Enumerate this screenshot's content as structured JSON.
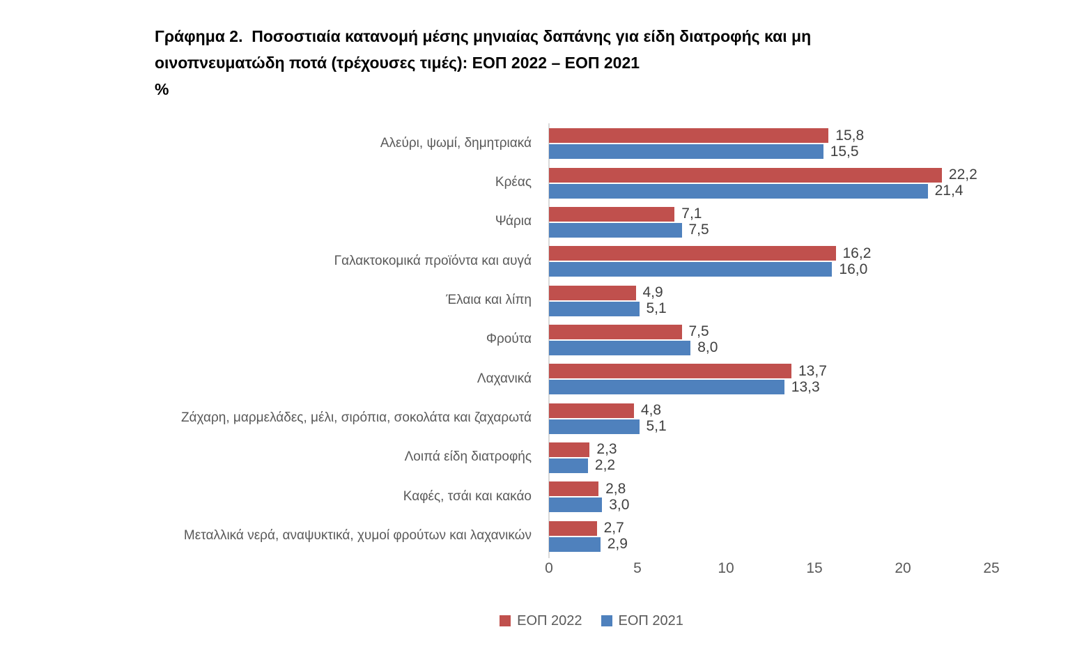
{
  "title": {
    "line1": "Γράφημα 2.  Ποσοστιαία κατανομή μέσης μηνιαίας δαπάνης για είδη διατροφής και μη",
    "line2": "οινοπνευματώδη ποτά (τρέχουσες τιμές): ΕΟΠ 2022 – ΕΟΠ 2021",
    "unit": "%"
  },
  "chart_data": {
    "type": "bar",
    "orientation": "horizontal",
    "title": "Γράφημα 2. Ποσοστιαία κατανομή μέσης μηνιαίας δαπάνης για είδη διατροφής και μη οινοπνευματώδη ποτά (τρέχουσες τιμές): ΕΟΠ 2022 – ΕΟΠ 2021",
    "xlabel": "%",
    "xlim": [
      0,
      25
    ],
    "x_ticks": [
      0,
      5,
      10,
      15,
      20,
      25
    ],
    "grid": false,
    "legend_position": "bottom",
    "decimal_separator": ",",
    "categories": [
      "Αλεύρι, ψωμί, δημητριακά",
      "Κρέας",
      "Ψάρια",
      "Γαλακτοκομικά προϊόντα και αυγά",
      "Έλαια και λίπη",
      "Φρούτα",
      "Λαχανικά",
      "Ζάχαρη, μαρμελάδες, μέλι, σιρόπια, σοκολάτα και ζαχαρωτά",
      "Λοιπά είδη διατροφής",
      "Καφές, τσάι και κακάο",
      "Μεταλλικά νερά, αναψυκτικά, χυμοί φρούτων και λαχανικών"
    ],
    "series": [
      {
        "name": "ΕΟΠ 2022",
        "key": "eop-2022",
        "color": "#C0504D",
        "values": [
          15.8,
          22.2,
          7.1,
          16.2,
          4.9,
          7.5,
          13.7,
          4.8,
          2.3,
          2.8,
          2.7
        ]
      },
      {
        "name": "ΕΟΠ 2021",
        "key": "eop-2021",
        "color": "#4F81BD",
        "values": [
          15.5,
          21.4,
          7.5,
          16.0,
          5.1,
          8.0,
          13.3,
          5.1,
          2.2,
          3.0,
          2.9
        ]
      }
    ]
  },
  "colors": {
    "series_2022": "#C0504D",
    "series_2021": "#4F81BD",
    "axis_line": "#d9d9d9",
    "category_text": "#595959",
    "value_text": "#404040",
    "title_text": "#000000"
  }
}
